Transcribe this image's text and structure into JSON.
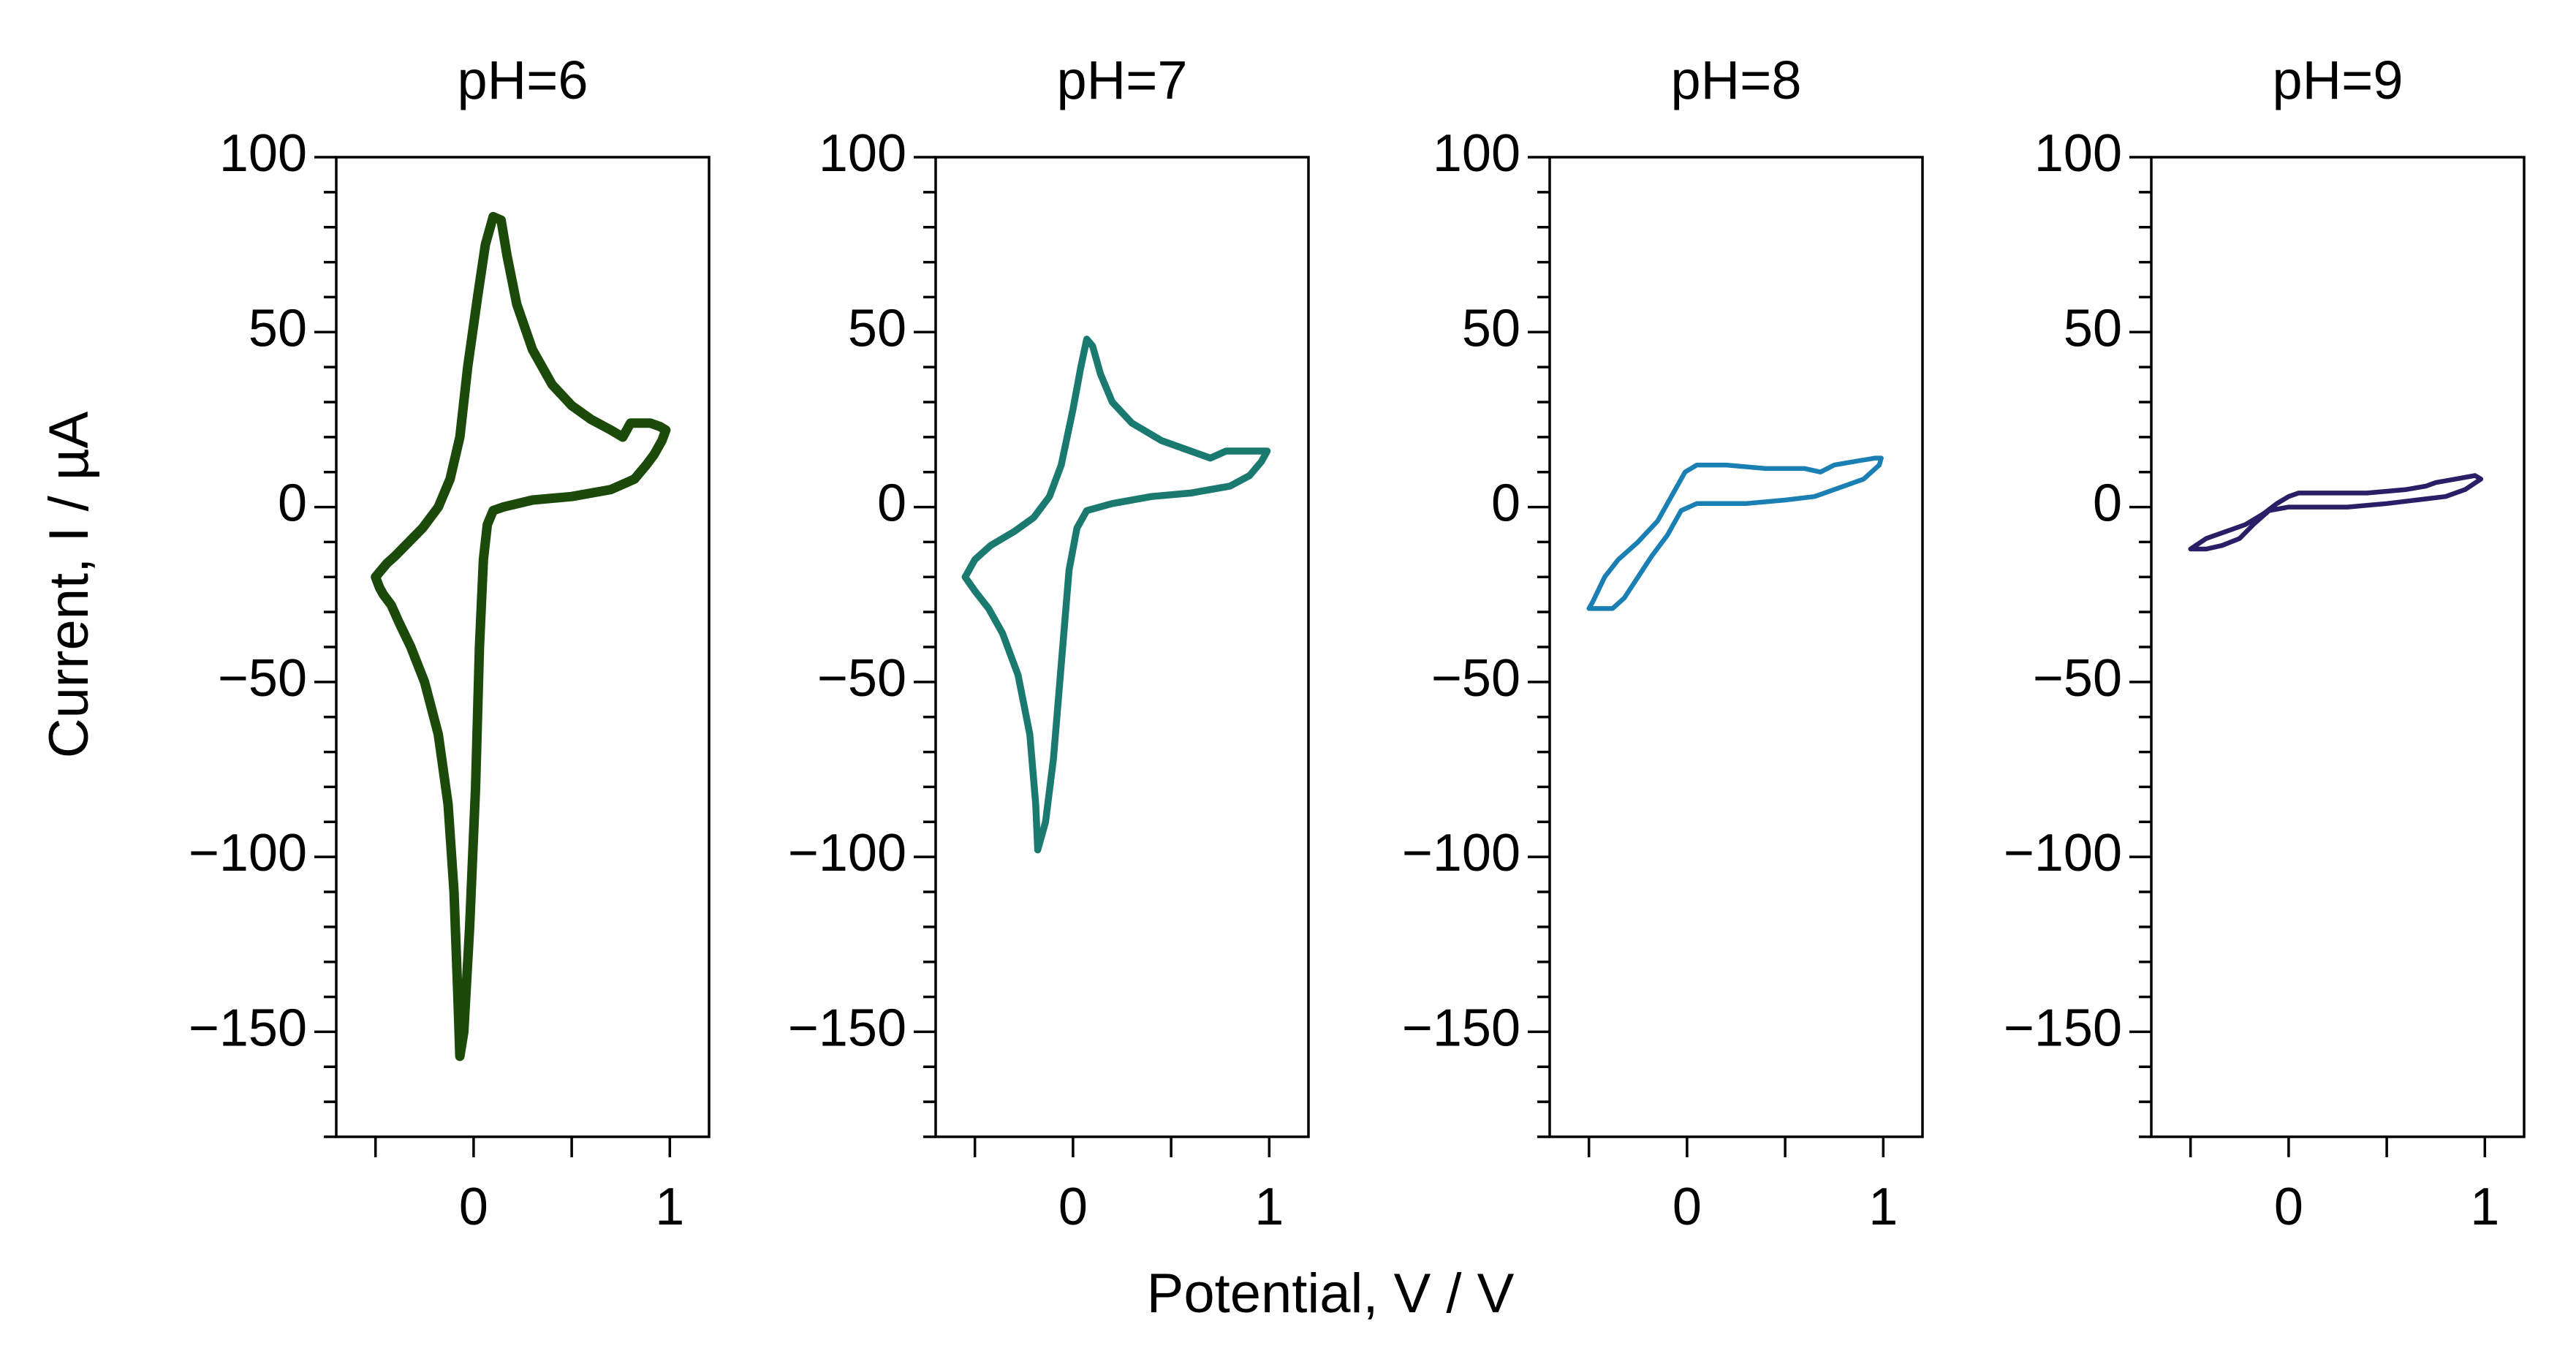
{
  "chart_data": {
    "type": "line",
    "xlabel": "Potential, V / V",
    "ylabel": "Current, I / µA",
    "shared_axes": {
      "xlim": [
        -0.7,
        1.2
      ],
      "ylim": [
        -180,
        100
      ],
      "x_ticks": [
        0,
        1
      ],
      "x_minor_ticks": [
        -0.5,
        0.5
      ],
      "y_ticks": [
        -150,
        -100,
        -50,
        0,
        50,
        100
      ],
      "y_tick_labels": [
        "−150",
        "−100",
        "−50",
        "0",
        "50",
        "100"
      ],
      "y_minor_step": 10
    },
    "panels": [
      {
        "title": "pH=6",
        "series_color": "#1c4a0a",
        "line_weight": "thick",
        "cv_points": [
          [
            -0.07,
            -157
          ],
          [
            -0.08,
            -140
          ],
          [
            -0.1,
            -110
          ],
          [
            -0.13,
            -85
          ],
          [
            -0.18,
            -65
          ],
          [
            -0.25,
            -50
          ],
          [
            -0.32,
            -40
          ],
          [
            -0.38,
            -33
          ],
          [
            -0.42,
            -28
          ],
          [
            -0.46,
            -25
          ],
          [
            -0.48,
            -23
          ],
          [
            -0.5,
            -20
          ],
          [
            -0.47,
            -18
          ],
          [
            -0.44,
            -16
          ],
          [
            -0.4,
            -14
          ],
          [
            -0.33,
            -10
          ],
          [
            -0.26,
            -6
          ],
          [
            -0.18,
            0
          ],
          [
            -0.12,
            8
          ],
          [
            -0.07,
            20
          ],
          [
            -0.03,
            40
          ],
          [
            0.02,
            60
          ],
          [
            0.06,
            75
          ],
          [
            0.1,
            83
          ],
          [
            0.14,
            82
          ],
          [
            0.17,
            72
          ],
          [
            0.22,
            58
          ],
          [
            0.3,
            45
          ],
          [
            0.4,
            35
          ],
          [
            0.5,
            29
          ],
          [
            0.6,
            25
          ],
          [
            0.7,
            22
          ],
          [
            0.76,
            20
          ],
          [
            0.8,
            24
          ],
          [
            0.85,
            24
          ],
          [
            0.9,
            24
          ],
          [
            0.95,
            23
          ],
          [
            0.98,
            22
          ],
          [
            0.96,
            19
          ],
          [
            0.92,
            15
          ],
          [
            0.88,
            12
          ],
          [
            0.82,
            8
          ],
          [
            0.7,
            5
          ],
          [
            0.5,
            3
          ],
          [
            0.3,
            2
          ],
          [
            0.15,
            0
          ],
          [
            0.1,
            -1
          ],
          [
            0.07,
            -5
          ],
          [
            0.05,
            -15
          ],
          [
            0.03,
            -40
          ],
          [
            0.01,
            -80
          ],
          [
            -0.02,
            -120
          ],
          [
            -0.05,
            -150
          ],
          [
            -0.07,
            -157
          ]
        ]
      },
      {
        "title": "pH=7",
        "series_color": "#1a7a70",
        "line_weight": "medium",
        "cv_points": [
          [
            -0.18,
            -98
          ],
          [
            -0.19,
            -85
          ],
          [
            -0.22,
            -65
          ],
          [
            -0.28,
            -48
          ],
          [
            -0.36,
            -36
          ],
          [
            -0.43,
            -29
          ],
          [
            -0.5,
            -24
          ],
          [
            -0.55,
            -20
          ],
          [
            -0.5,
            -15
          ],
          [
            -0.42,
            -11
          ],
          [
            -0.3,
            -7
          ],
          [
            -0.2,
            -3
          ],
          [
            -0.12,
            3
          ],
          [
            -0.06,
            12
          ],
          [
            0,
            28
          ],
          [
            0.04,
            40
          ],
          [
            0.07,
            48
          ],
          [
            0.1,
            46
          ],
          [
            0.14,
            38
          ],
          [
            0.2,
            30
          ],
          [
            0.3,
            24
          ],
          [
            0.45,
            19
          ],
          [
            0.6,
            16
          ],
          [
            0.7,
            14
          ],
          [
            0.74,
            15
          ],
          [
            0.78,
            16
          ],
          [
            0.85,
            16
          ],
          [
            0.92,
            16
          ],
          [
            0.99,
            16
          ],
          [
            0.96,
            13
          ],
          [
            0.9,
            9
          ],
          [
            0.8,
            6
          ],
          [
            0.6,
            4
          ],
          [
            0.4,
            3
          ],
          [
            0.2,
            1
          ],
          [
            0.07,
            -1
          ],
          [
            0.02,
            -6
          ],
          [
            -0.02,
            -18
          ],
          [
            -0.06,
            -45
          ],
          [
            -0.1,
            -72
          ],
          [
            -0.14,
            -90
          ],
          [
            -0.18,
            -98
          ]
        ]
      },
      {
        "title": "pH=8",
        "series_color": "#1a7fb2",
        "line_weight": "thin",
        "cv_points": [
          [
            -0.5,
            -29
          ],
          [
            -0.45,
            -29
          ],
          [
            -0.38,
            -29
          ],
          [
            -0.32,
            -26
          ],
          [
            -0.25,
            -20
          ],
          [
            -0.18,
            -14
          ],
          [
            -0.1,
            -8
          ],
          [
            -0.03,
            -1
          ],
          [
            0.05,
            1
          ],
          [
            0.3,
            1
          ],
          [
            0.5,
            2
          ],
          [
            0.65,
            3
          ],
          [
            0.8,
            6
          ],
          [
            0.9,
            8
          ],
          [
            0.98,
            12
          ],
          [
            0.99,
            14
          ],
          [
            0.96,
            14
          ],
          [
            0.85,
            13
          ],
          [
            0.75,
            12
          ],
          [
            0.68,
            10
          ],
          [
            0.6,
            11
          ],
          [
            0.4,
            11
          ],
          [
            0.2,
            12
          ],
          [
            0.05,
            12
          ],
          [
            -0.01,
            10
          ],
          [
            -0.07,
            4
          ],
          [
            -0.15,
            -4
          ],
          [
            -0.25,
            -10
          ],
          [
            -0.35,
            -15
          ],
          [
            -0.42,
            -20
          ],
          [
            -0.48,
            -27
          ],
          [
            -0.5,
            -29
          ]
        ]
      },
      {
        "title": "pH=9",
        "series_color": "#2a1e66",
        "line_weight": "thin",
        "cv_points": [
          [
            -0.5,
            -12
          ],
          [
            -0.42,
            -12
          ],
          [
            -0.34,
            -11
          ],
          [
            -0.25,
            -9
          ],
          [
            -0.18,
            -5
          ],
          [
            -0.1,
            -1
          ],
          [
            0,
            0
          ],
          [
            0.3,
            0
          ],
          [
            0.5,
            1
          ],
          [
            0.65,
            2
          ],
          [
            0.8,
            3
          ],
          [
            0.9,
            5
          ],
          [
            0.98,
            8
          ],
          [
            0.95,
            9
          ],
          [
            0.85,
            8
          ],
          [
            0.75,
            7
          ],
          [
            0.7,
            6
          ],
          [
            0.6,
            5
          ],
          [
            0.4,
            4
          ],
          [
            0.2,
            4
          ],
          [
            0.05,
            4
          ],
          [
            0,
            3
          ],
          [
            -0.06,
            1
          ],
          [
            -0.13,
            -2
          ],
          [
            -0.22,
            -5
          ],
          [
            -0.32,
            -7
          ],
          [
            -0.42,
            -9
          ],
          [
            -0.5,
            -12
          ]
        ]
      }
    ]
  }
}
